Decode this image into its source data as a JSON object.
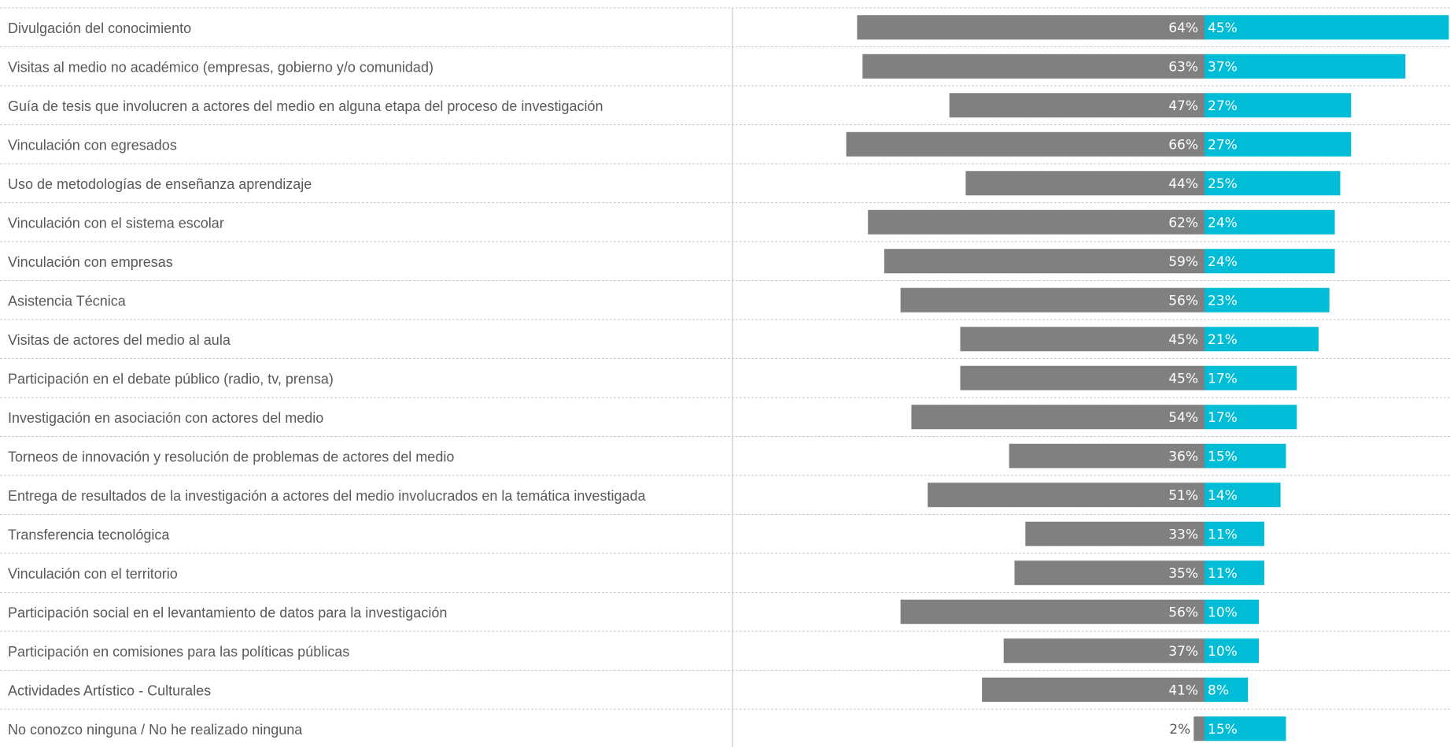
{
  "chart_data": {
    "type": "bar",
    "orientation": "horizontal-diverging",
    "grid": true,
    "xlim": [
      -70,
      50
    ],
    "categories": [
      "Divulgación del conocimiento",
      "Visitas al medio no académico (empresas, gobierno y/o comunidad)",
      "Guía de tesis que involucren a actores del medio en alguna etapa del proceso de investigación",
      "Vinculación con egresados",
      "Uso de metodologías de enseñanza aprendizaje",
      "Vinculación con el sistema escolar",
      "Vinculación con empresas",
      "Asistencia Técnica",
      "Visitas de actores del medio al aula",
      "Participación en el debate público (radio, tv, prensa)",
      "Investigación en asociación con actores del medio",
      "Torneos de innovación y resolución de problemas de actores del medio",
      "Entrega de resultados de la investigación a actores del medio involucrados en la temática investigada",
      "Transferencia tecnológica",
      "Vinculación con el territorio",
      "Participación social en el levantamiento de datos para la investigación",
      "Participación en comisiones para las políticas públicas",
      "Actividades Artístico - Culturales",
      "No conozco ninguna / No he realizado ninguna"
    ],
    "series": [
      {
        "values": [
          64,
          63,
          47,
          66,
          44,
          62,
          59,
          56,
          45,
          45,
          54,
          36,
          51,
          33,
          35,
          56,
          37,
          41,
          2
        ],
        "labels": [
          "64%",
          "63%",
          "47%",
          "66%",
          "44%",
          "62%",
          "59%",
          "56%",
          "45%",
          "45%",
          "54%",
          "36%",
          "51%",
          "33%",
          "35%",
          "56%",
          "37%",
          "41%",
          "2%"
        ],
        "color": "#808080",
        "direction": "left"
      },
      {
        "values": [
          45,
          37,
          27,
          27,
          25,
          24,
          24,
          23,
          21,
          17,
          17,
          15,
          14,
          11,
          11,
          10,
          10,
          8,
          15
        ],
        "labels": [
          "45%",
          "37%",
          "27%",
          "27%",
          "25%",
          "24%",
          "24%",
          "23%",
          "21%",
          "17%",
          "17%",
          "15%",
          "14%",
          "11%",
          "11%",
          "10%",
          "10%",
          "8%",
          "15%"
        ],
        "color": "#00BCD6",
        "direction": "right"
      }
    ]
  }
}
